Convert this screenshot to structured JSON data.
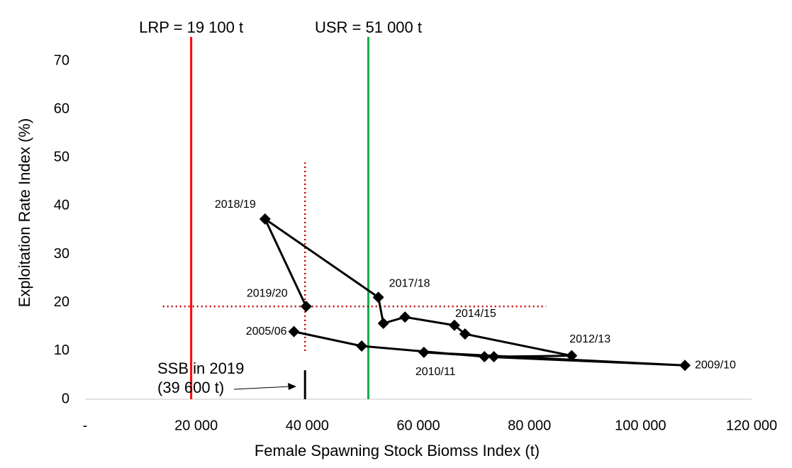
{
  "chart_data": {
    "type": "line",
    "x_label": "Female Spawning Stock Biomss Index (t)",
    "y_label": "Exploitation Rate Index (%)",
    "xlim": [
      0,
      120000
    ],
    "ylim": [
      0,
      75
    ],
    "xticks": [
      {
        "value": 0,
        "label": "-"
      },
      {
        "value": 20000,
        "label": "20 000"
      },
      {
        "value": 40000,
        "label": "40 000"
      },
      {
        "value": 60000,
        "label": "60 000"
      },
      {
        "value": 80000,
        "label": "80 000"
      },
      {
        "value": 100000,
        "label": "100 000"
      },
      {
        "value": 120000,
        "label": "120 000"
      }
    ],
    "yticks": [
      0,
      10,
      20,
      30,
      40,
      50,
      60,
      70
    ],
    "grid": false,
    "series": [
      {
        "color": "#000000",
        "x": [
          37600,
          49800,
          71900,
          108000,
          61000,
          73600,
          87600,
          68400,
          66500,
          57600,
          53700,
          52800,
          32400,
          39800
        ],
        "values": [
          14,
          11,
          8.8,
          7.0,
          9.7,
          8.8,
          9.0,
          13.5,
          15.3,
          17.0,
          15.7,
          21.1,
          37.3,
          19.2
        ],
        "point_labels": [
          "2005/06",
          null,
          null,
          "2009/10",
          "2010/11",
          null,
          "2012/13",
          null,
          "2014/15",
          null,
          null,
          "2017/18",
          "2018/19",
          "2019/20"
        ]
      }
    ],
    "reference_lines": [
      {
        "label": "LRP = 19 100 t",
        "x": 19100,
        "color": "#ff0000"
      },
      {
        "label": "USR = 51 000 t",
        "x": 51000,
        "color": "#00b050"
      }
    ],
    "dotted_lines": [
      {
        "x": 39600,
        "y": [
          10,
          49
        ],
        "color": "#c00000"
      },
      {
        "y": 19.2,
        "x": [
          14000,
          83000
        ],
        "color": "#c00000"
      }
    ],
    "ssb_marker": {
      "x": 39600,
      "y": [
        0,
        6
      ],
      "label": [
        "SSB in 2019",
        "(39 600 t)"
      ]
    }
  }
}
